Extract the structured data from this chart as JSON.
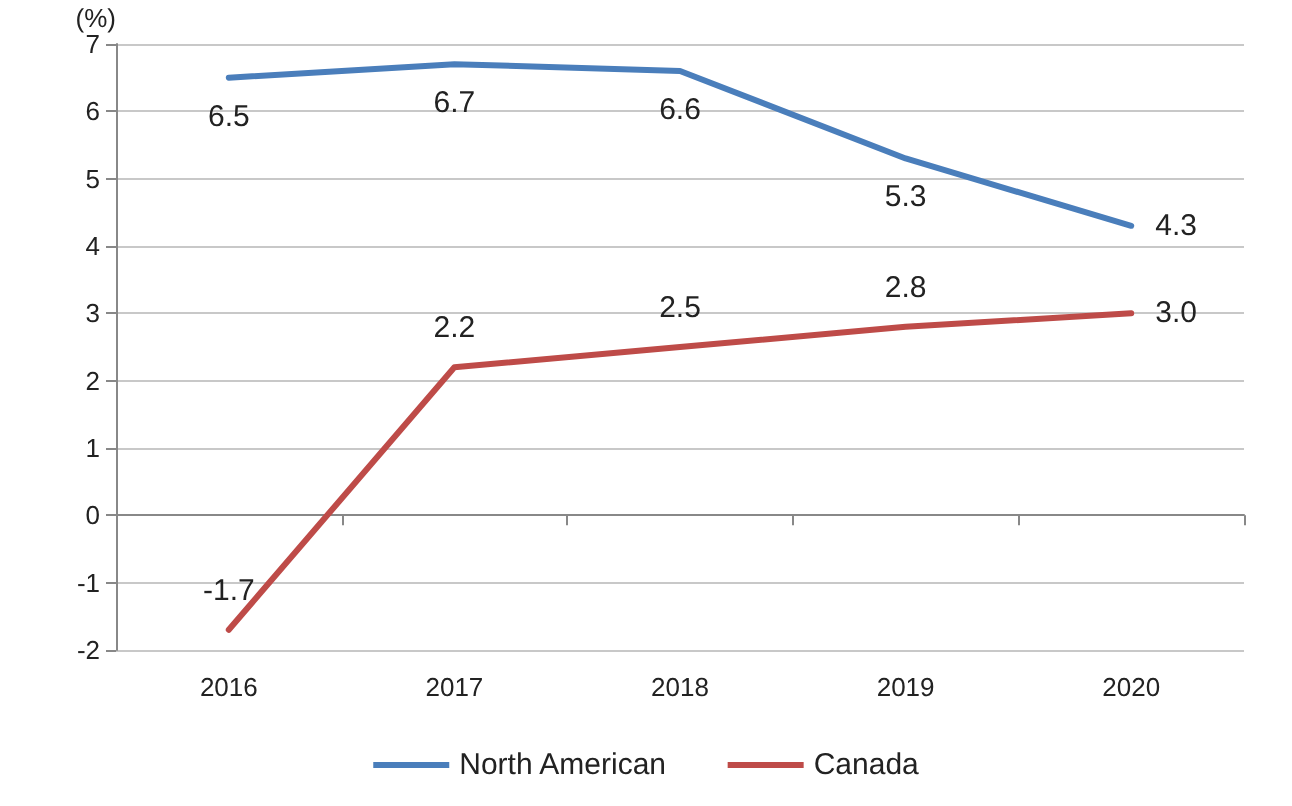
{
  "chart_data": {
    "type": "line",
    "ylabel": "(%)",
    "categories": [
      "2016",
      "2017",
      "2018",
      "2019",
      "2020"
    ],
    "series": [
      {
        "name": "North American",
        "color": "#4a7ebb",
        "values": [
          6.5,
          6.7,
          6.6,
          5.3,
          4.3
        ],
        "value_labels": [
          "6.5",
          "6.7",
          "6.6",
          "5.3",
          "4.3"
        ]
      },
      {
        "name": "Canada",
        "color": "#be4b48",
        "values": [
          -1.7,
          2.2,
          2.5,
          2.8,
          3.0
        ],
        "value_labels": [
          "-1.7",
          "2.2",
          "2.5",
          "2.8",
          "3.0"
        ]
      }
    ],
    "ylim": [
      -2,
      7
    ],
    "yticks": [
      -2,
      -1,
      0,
      1,
      2,
      3,
      4,
      5,
      6,
      7
    ],
    "grid": "y",
    "legend": "bottom",
    "marker": "none",
    "line_style": "solid"
  }
}
